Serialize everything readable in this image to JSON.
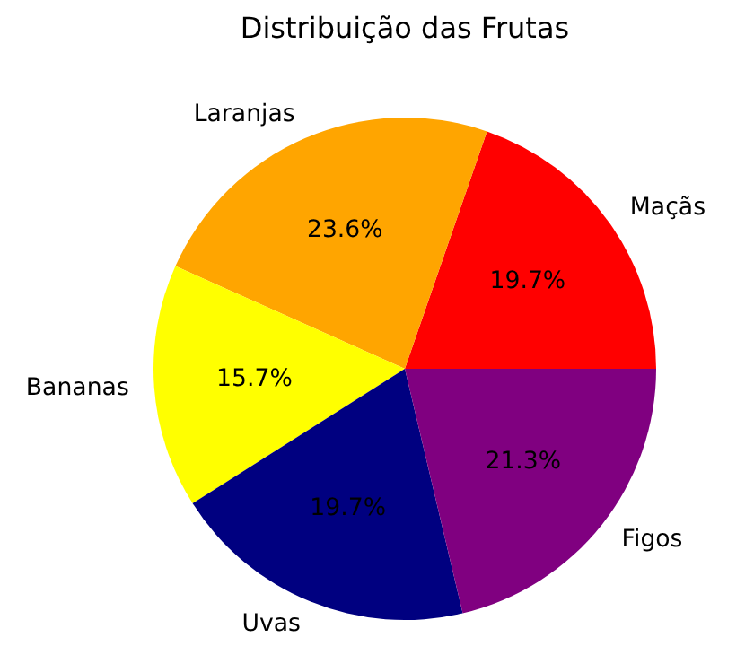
{
  "chart_data": {
    "type": "pie",
    "title": "Distribuição das Frutas",
    "categories": [
      "Maçãs",
      "Laranjas",
      "Bananas",
      "Uvas",
      "Figos"
    ],
    "values": [
      19.7,
      23.6,
      15.7,
      19.7,
      21.3
    ],
    "colors": [
      "#ff0000",
      "#ffa500",
      "#ffff00",
      "#000080",
      "#800080"
    ],
    "value_labels": [
      "19.7%",
      "23.6%",
      "15.7%",
      "19.7%",
      "21.3%"
    ]
  }
}
